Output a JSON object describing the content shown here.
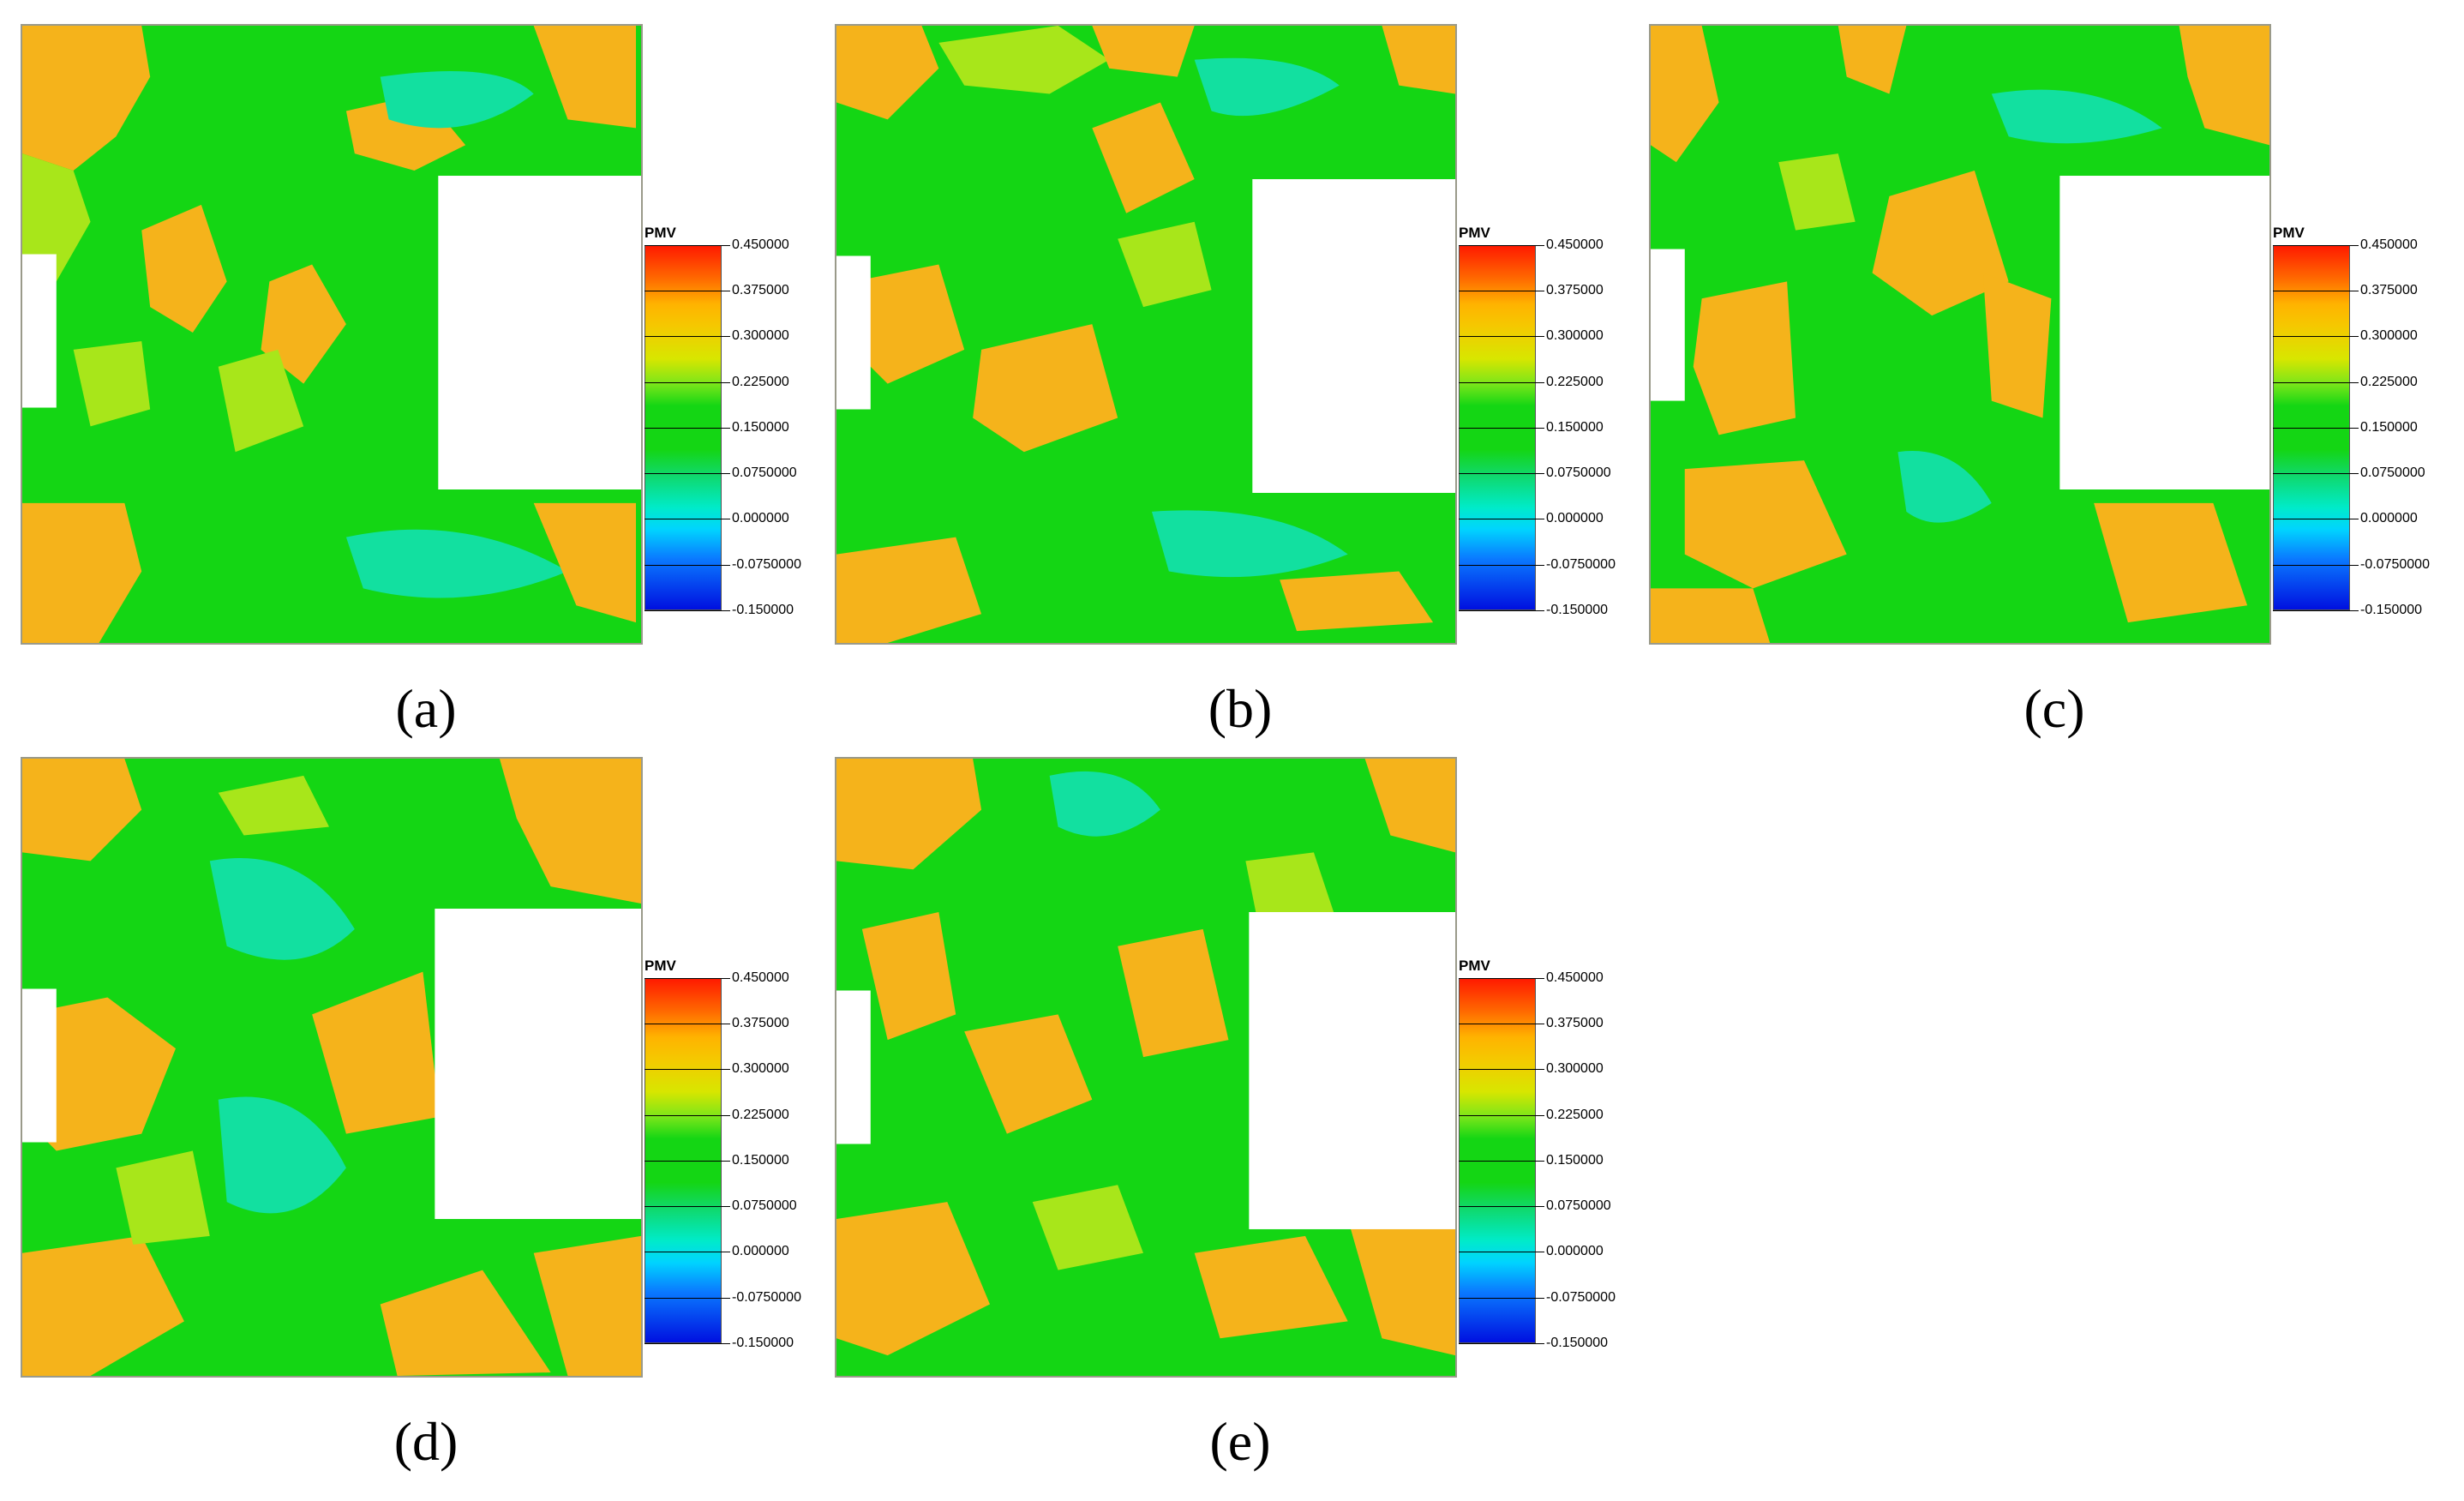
{
  "legend": {
    "title": "PMV",
    "labels": [
      "0.450000",
      "0.375000",
      "0.300000",
      "0.225000",
      "0.150000",
      "0.0750000",
      "0.000000",
      "-0.0750000",
      "-0.150000"
    ]
  },
  "colors": {
    "green": "#14d614",
    "orange": "#f5b31b",
    "yellow_green": "#a8e61a",
    "cyan_green": "#12e0a0",
    "red": "#ff1a00",
    "blue": "#0010e0"
  },
  "panels": [
    {
      "id": "a",
      "caption": "(a)"
    },
    {
      "id": "b",
      "caption": "(b)"
    },
    {
      "id": "c",
      "caption": "(c)"
    },
    {
      "id": "d",
      "caption": "(d)"
    },
    {
      "id": "e",
      "caption": "(e)"
    }
  ]
}
